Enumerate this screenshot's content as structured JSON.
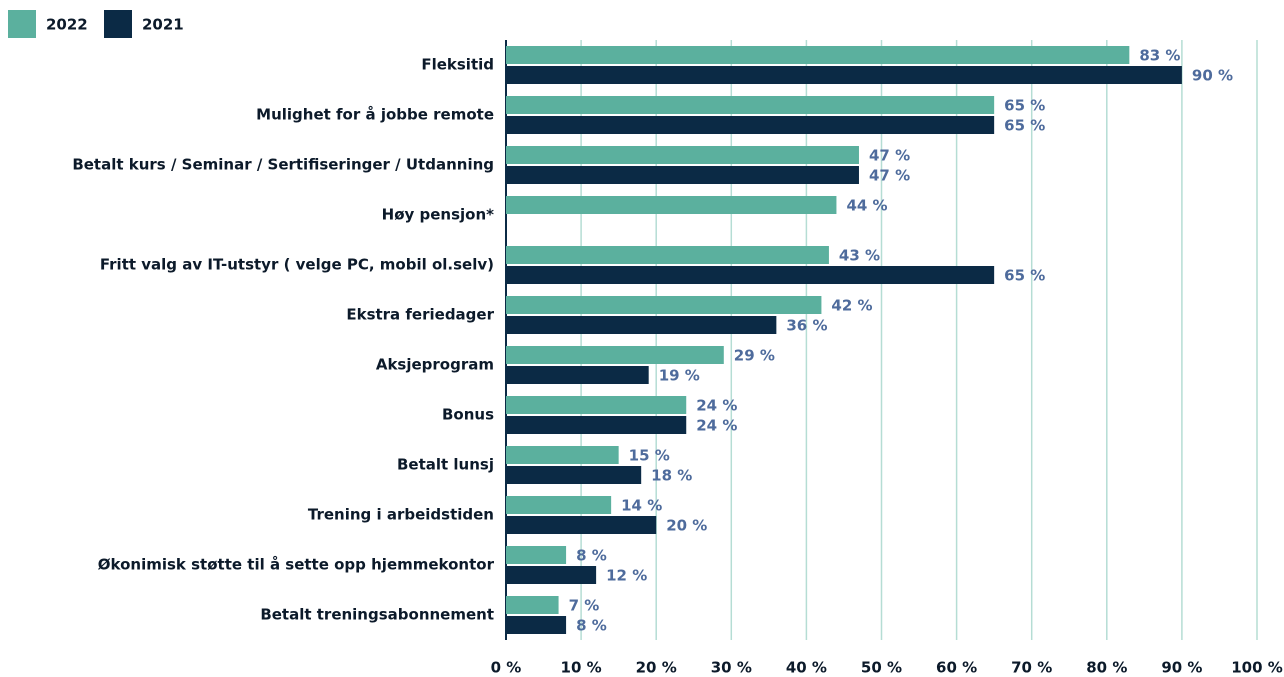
{
  "chart_data": {
    "type": "barh",
    "categories": [
      "Fleksitid",
      "Mulighet for å jobbe remote",
      "Betalt kurs / Seminar / Sertifiseringer / Utdanning",
      "Høy pensjon*",
      "Fritt valg av IT-utstyr ( velge PC, mobil ol.selv)",
      "Ekstra feriedager",
      "Aksjeprogram",
      "Bonus",
      "Betalt lunsj",
      "Trening i arbeidstiden",
      "Økonimisk støtte til å sette opp hjemmekontor",
      "Betalt treningsabonnement"
    ],
    "series": [
      {
        "name": "2022",
        "color": "#5bb09e",
        "values": [
          83,
          65,
          47,
          44,
          43,
          42,
          29,
          24,
          15,
          14,
          8,
          7
        ],
        "value_labels": [
          "83 %",
          "65 %",
          "47 %",
          "44 %",
          "43 %",
          "42 %",
          "29 %",
          "24 %",
          "15 %",
          "14 %",
          "8 %",
          "7 %"
        ]
      },
      {
        "name": "2021",
        "color": "#0b2a45",
        "values": [
          90,
          65,
          47,
          null,
          65,
          36,
          19,
          24,
          18,
          20,
          12,
          8
        ],
        "value_labels": [
          "90 %",
          "65 %",
          "47 %",
          null,
          "65 %",
          "36 %",
          "19 %",
          "24 %",
          "18 %",
          "20 %",
          "12 %",
          "8 %"
        ]
      }
    ],
    "xlim": [
      0,
      100
    ],
    "xticks": [
      {
        "value": 0,
        "label": "0 %"
      },
      {
        "value": 10,
        "label": "10 %"
      },
      {
        "value": 20,
        "label": "20 %"
      },
      {
        "value": 30,
        "label": "30 %"
      },
      {
        "value": 40,
        "label": "40 %"
      },
      {
        "value": 50,
        "label": "50 %"
      },
      {
        "value": 60,
        "label": "60 %"
      },
      {
        "value": 70,
        "label": "70 %"
      },
      {
        "value": 80,
        "label": "80 %"
      },
      {
        "value": 90,
        "label": "90 %"
      },
      {
        "value": 100,
        "label": "100 %"
      }
    ],
    "grid": true,
    "legend": "top-left"
  }
}
